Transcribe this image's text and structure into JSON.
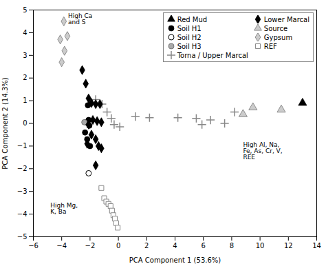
{
  "chart_data": {
    "type": "scatter",
    "title": "",
    "xlabel": "PCA Component 1 (53.6%)",
    "ylabel": "PCA Component 2 (14.3%)",
    "xlim": [
      -6,
      14
    ],
    "ylim": [
      -5,
      5
    ],
    "xticks": [
      -6,
      -4,
      -2,
      0,
      2,
      4,
      6,
      8,
      10,
      12,
      14
    ],
    "yticks": [
      -5,
      -4,
      -3,
      -2,
      -1,
      0,
      1,
      2,
      3,
      4,
      5
    ],
    "grid": false,
    "legend": "upper right",
    "annotations": [
      {
        "text": "High Ca\nand S",
        "x": -3.55,
        "y": 4.85
      },
      {
        "text": "High Mg,\nK, Ba",
        "x": -4.8,
        "y": -3.5
      },
      {
        "text": "High Al, Na,\nFe, As, Cr, V,\nREE",
        "x": 8.8,
        "y": -0.85
      }
    ],
    "series": [
      {
        "name": "Red Mud",
        "color": "#000000",
        "marker": "triangle",
        "x": [
          13.0
        ],
        "y": [
          0.9
        ]
      },
      {
        "name": "Soil H1",
        "color": "#000000",
        "marker": "circle",
        "x": [
          -2.3,
          -2.1,
          -2.05,
          -2.15,
          -2.0,
          -2.35,
          -2.2
        ],
        "y": [
          0.05,
          0.15,
          -0.1,
          0.8,
          -1.0,
          -0.4,
          -0.7
        ]
      },
      {
        "name": "Soil H2",
        "color": "#000000",
        "marker": "circle-open",
        "x": [
          -2.1
        ],
        "y": [
          -2.2
        ]
      },
      {
        "name": "Soil H3",
        "color": "#aaaaaa",
        "marker": "circle",
        "x": [
          -2.4
        ],
        "y": [
          0.05
        ]
      },
      {
        "name": "Torna / Upper Marcal",
        "color": "#888888",
        "marker": "plus",
        "x": [
          -1.6,
          -1.15,
          -0.8,
          -0.5,
          -0.3,
          0.1,
          1.2,
          2.2,
          4.2,
          5.5,
          5.9,
          6.5,
          7.5,
          8.2
        ],
        "y": [
          1.05,
          0.85,
          0.5,
          0.22,
          -0.05,
          -0.15,
          0.3,
          0.25,
          0.25,
          0.22,
          -0.05,
          0.15,
          0.0,
          0.5
        ]
      },
      {
        "name": "Lower Marcal",
        "color": "#000000",
        "marker": "diamond",
        "x": [
          -2.55,
          -2.3,
          -2.1,
          -1.9,
          -1.6,
          -1.3,
          -1.8,
          -1.5,
          -1.2,
          -2.1,
          -1.9,
          -1.6,
          -1.4,
          -1.2,
          -1.6,
          -2.2
        ],
        "y": [
          2.35,
          1.75,
          1.1,
          0.9,
          0.85,
          0.85,
          0.15,
          0.1,
          0.05,
          -0.05,
          -0.5,
          -0.7,
          -1.0,
          -1.1,
          -1.85,
          -0.9
        ]
      },
      {
        "name": "Source",
        "color": "#cccccc",
        "marker": "triangle",
        "x": [
          8.8,
          9.5,
          11.5
        ],
        "y": [
          0.4,
          0.7,
          0.6
        ]
      },
      {
        "name": "Gypsum",
        "color": "#cccccc",
        "marker": "diamond",
        "x": [
          -3.85,
          -3.6,
          -4.1,
          -3.8,
          -4.0
        ],
        "y": [
          4.5,
          3.85,
          3.7,
          3.2,
          2.7
        ]
      },
      {
        "name": "REF",
        "color": "#888888",
        "marker": "square-open",
        "x": [
          -1.2,
          -1.0,
          -0.85,
          -0.7,
          -0.55,
          -0.45,
          -0.35,
          -0.25,
          -0.15,
          -0.05
        ],
        "y": [
          -2.85,
          -3.3,
          -3.45,
          -3.55,
          -3.65,
          -3.85,
          -4.05,
          -4.2,
          -4.4,
          -4.6
        ]
      }
    ]
  }
}
